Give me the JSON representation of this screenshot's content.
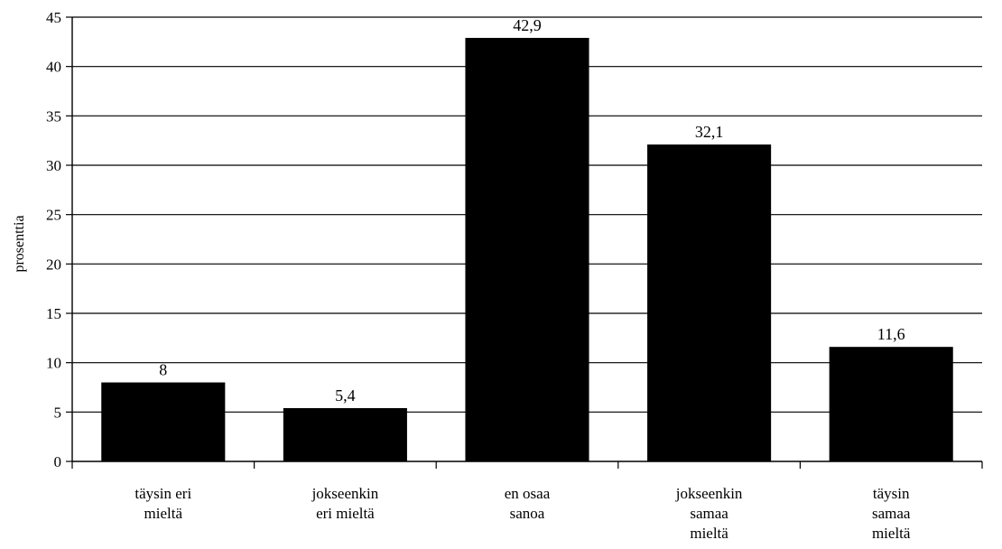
{
  "chart_data": {
    "type": "bar",
    "title": "",
    "xlabel": "",
    "ylabel": "prosenttia",
    "ylim": [
      0,
      45
    ],
    "ytick_step": 5,
    "yticks": [
      "0",
      "5",
      "10",
      "15",
      "20",
      "25",
      "30",
      "35",
      "40",
      "45"
    ],
    "grid": true,
    "legend": "none",
    "bar_color": "#000000",
    "categories": [
      [
        "täysin eri",
        "mieltä"
      ],
      [
        "jokseenkin",
        "eri mieltä"
      ],
      [
        "en osaa",
        "sanoa"
      ],
      [
        "jokseenkin",
        "samaa",
        "mieltä"
      ],
      [
        "täysin",
        "samaa",
        "mieltä"
      ]
    ],
    "values": [
      8,
      5.4,
      42.9,
      32.1,
      11.6
    ],
    "data_labels": [
      "8",
      "5,4",
      "42,9",
      "32,1",
      "11,6"
    ]
  }
}
